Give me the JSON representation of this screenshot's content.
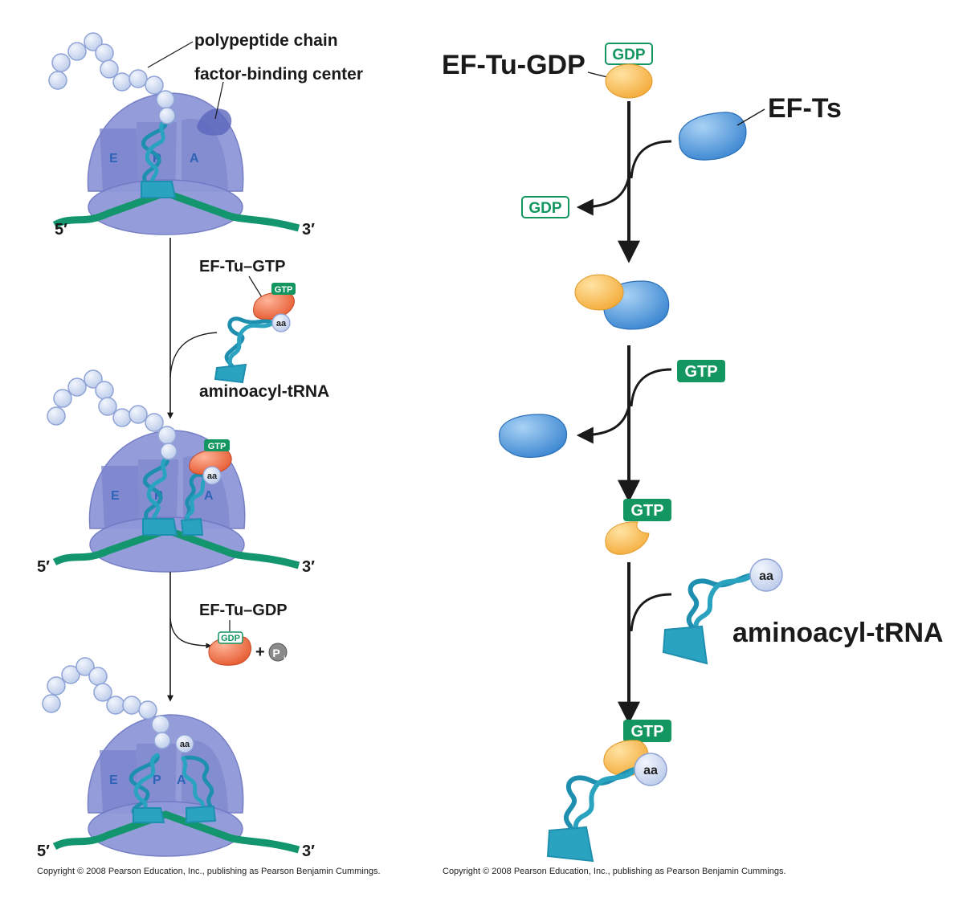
{
  "left_panel": {
    "labels": {
      "polypeptide_chain": "polypeptide chain",
      "factor_binding_center": "factor-binding center",
      "ef_tu_gtp": "EF-Tu–GTP",
      "aminoacyl_trna": "aminoacyl-tRNA",
      "ef_tu_gdp": "EF-Tu–GDP",
      "plus": "+",
      "pi": "P",
      "pi_sub": "i",
      "five_prime": "5′",
      "three_prime": "3′",
      "site_e": "E",
      "site_p": "P",
      "site_a": "A",
      "gtp": "GTP",
      "gdp": "GDP",
      "aa": "aa"
    },
    "copyright": "Copyright © 2008 Pearson Education, Inc., publishing as Pearson Benjamin Cummings."
  },
  "right_panel": {
    "labels": {
      "ef_tu_gdp": "EF-Tu-GDP",
      "gdp": "GDP",
      "ef_ts": "EF-Ts",
      "gtp": "GTP",
      "aminoacyl_trna": "aminoacyl-tRNA",
      "aa": "aa"
    },
    "copyright": "Copyright © 2008 Pearson Education, Inc., publishing as Pearson Benjamin Cummings."
  },
  "colors": {
    "ribosome": "#8c95d8",
    "ribosome_dark": "#6f79c4",
    "mrna": "#13966e",
    "trna": "#2aa3c0",
    "ef_tu_ribo": "#e8623a",
    "ef_tu": "#f7b84a",
    "ef_ts": "#3f8fd6",
    "gtp_tag": "#13965f",
    "amino_acid": "#c9d5ee"
  }
}
